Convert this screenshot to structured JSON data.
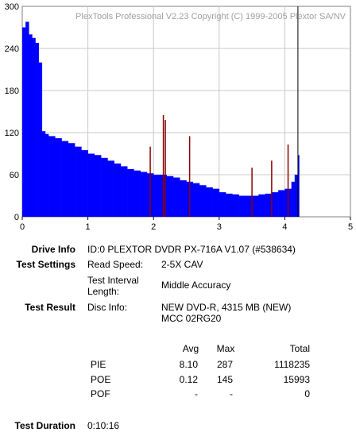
{
  "chart_data": {
    "type": "bar",
    "title": "PlexTools Professional V2.23 Copyright (C) 1999-2005 Plextor SA/NV",
    "xlabel": "",
    "ylabel": "",
    "xlim": [
      0,
      5
    ],
    "ylim": [
      0,
      300
    ],
    "x_ticks": [
      "0",
      "1",
      "2",
      "3",
      "4",
      "5"
    ],
    "y_ticks": [
      "0",
      "60",
      "120",
      "180",
      "240",
      "300"
    ],
    "grid": true,
    "end_marker_x": 4.2,
    "series": [
      {
        "color": "#0000ff",
        "x": [
          0.0,
          0.05,
          0.1,
          0.15,
          0.2,
          0.25,
          0.3,
          0.35,
          0.4,
          0.5,
          0.6,
          0.7,
          0.8,
          0.9,
          1.0,
          1.1,
          1.2,
          1.3,
          1.4,
          1.5,
          1.6,
          1.7,
          1.8,
          1.9,
          2.0,
          2.1,
          2.2,
          2.3,
          2.4,
          2.5,
          2.6,
          2.7,
          2.8,
          2.9,
          3.0,
          3.1,
          3.2,
          3.3,
          3.4,
          3.5,
          3.6,
          3.7,
          3.8,
          3.9,
          4.0,
          4.1,
          4.15,
          4.2
        ],
        "values": [
          270,
          278,
          260,
          255,
          248,
          220,
          122,
          118,
          115,
          112,
          108,
          105,
          100,
          95,
          90,
          88,
          84,
          80,
          76,
          72,
          68,
          66,
          64,
          62,
          60,
          60,
          58,
          56,
          52,
          50,
          48,
          45,
          42,
          40,
          35,
          33,
          32,
          30,
          30,
          30,
          32,
          33,
          35,
          38,
          40,
          50,
          60,
          88
        ]
      }
    ],
    "spikes": {
      "color": "#8b0000",
      "x": [
        1.95,
        2.15,
        2.18,
        2.55,
        3.5,
        3.8,
        4.05
      ],
      "values": [
        100,
        145,
        138,
        115,
        70,
        80,
        103
      ]
    }
  },
  "info": {
    "drive_label": "Drive Info",
    "drive_value": "ID:0 PLEXTOR DVDR PX-716A V1.07 (#538634)",
    "settings_label": "Test Settings",
    "read_speed_label": "Read Speed:",
    "read_speed_value": "2-5X CAV",
    "interval_label_1": "Test Interval",
    "interval_label_2": "Length:",
    "interval_value": "Middle Accuracy",
    "result_label": "Test Result",
    "disc_label": "Disc Info:",
    "disc_value_1": "NEW DVD-R, 4315 MB (NEW)",
    "disc_value_2": "MCC 02RG20",
    "duration_label": "Test Duration",
    "duration_value": "0:10:16"
  },
  "stats": {
    "headers": {
      "avg": "Avg",
      "max": "Max",
      "total": "Total"
    },
    "rows": [
      {
        "name": "PIE",
        "avg": "8.10",
        "max": "287",
        "total": "1118235"
      },
      {
        "name": "POE",
        "avg": "0.12",
        "max": "145",
        "total": "15993"
      },
      {
        "name": "POF",
        "avg": "-",
        "max": "-",
        "total": "0"
      }
    ]
  }
}
